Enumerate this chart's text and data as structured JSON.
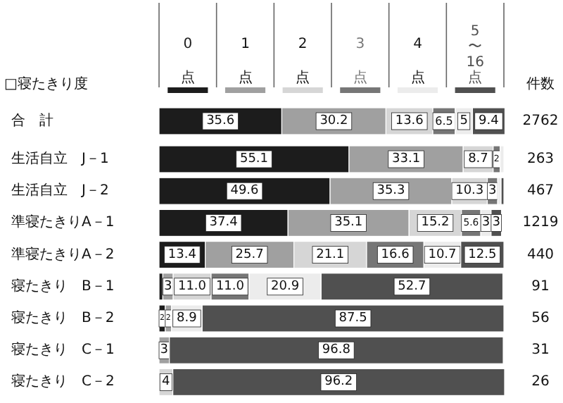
{
  "chart_data": {
    "type": "bar",
    "orientation": "horizontal",
    "stacked": true,
    "ylabel": "□寝たきり度",
    "categories": [
      "合　計",
      "生活自立　J－1",
      "生活自立　J－2",
      "準寝たきりA－1",
      "準寝たきりA－2",
      "寝たきり　B－1",
      "寝たきり　B－2",
      "寝たきり　C－1",
      "寝たきり　C－2"
    ],
    "xlim": [
      0,
      100
    ],
    "legend": "top",
    "series": [
      {
        "name": "0\n点",
        "color": "#1c1c1c",
        "values": [
          35.6,
          55.1,
          49.6,
          37.4,
          13.4,
          1.1,
          1.8,
          0,
          0
        ],
        "value_labels": [
          "35.6",
          "55.1",
          "49.6",
          "37.4",
          "13.4",
          null,
          "2",
          null,
          null
        ]
      },
      {
        "name": "1\n点",
        "color": "#a0a0a0",
        "values": [
          30.2,
          33.1,
          35.3,
          35.1,
          25.7,
          3,
          1.8,
          3,
          0
        ],
        "value_labels": [
          "30.2",
          "33.1",
          "35.3",
          "35.1",
          "25.7",
          "3",
          "2",
          "3",
          null
        ]
      },
      {
        "name": "2\n点",
        "color": "#d6d6d6",
        "values": [
          13.6,
          8.7,
          10.3,
          15.2,
          21.1,
          11.0,
          0,
          0,
          4
        ],
        "value_labels": [
          "13.6",
          "8.7",
          "10.3",
          "15.2",
          "21.1",
          "11.0",
          null,
          null,
          "4"
        ]
      },
      {
        "name": "3\n点",
        "color": "#767676",
        "values": [
          6.5,
          2,
          3,
          5.6,
          16.6,
          11.0,
          0,
          0,
          0
        ],
        "value_labels": [
          "6.5",
          "2",
          "3",
          "5.6",
          "16.6",
          "11.0",
          null,
          null,
          null
        ]
      },
      {
        "name": "4\n点",
        "color": "#ececec",
        "values": [
          5,
          1.1,
          1.0,
          3,
          10.7,
          20.9,
          8.9,
          0,
          0
        ],
        "value_labels": [
          "5",
          null,
          null,
          "3",
          "10.7",
          "20.9",
          "8.9",
          null,
          null
        ]
      },
      {
        "name": "5\n〜\n16\n点",
        "color": "#505050",
        "values": [
          9.4,
          0,
          0.8,
          3,
          12.5,
          52.7,
          87.5,
          96.8,
          96.2
        ],
        "value_labels": [
          "9.4",
          null,
          null,
          "3",
          "12.5",
          "52.7",
          "87.5",
          "96.8",
          "96.2"
        ]
      }
    ],
    "annotations": [
      "件数",
      "2762",
      "263",
      "467",
      "1219",
      "440",
      "91",
      "56",
      "31",
      "26"
    ]
  }
}
